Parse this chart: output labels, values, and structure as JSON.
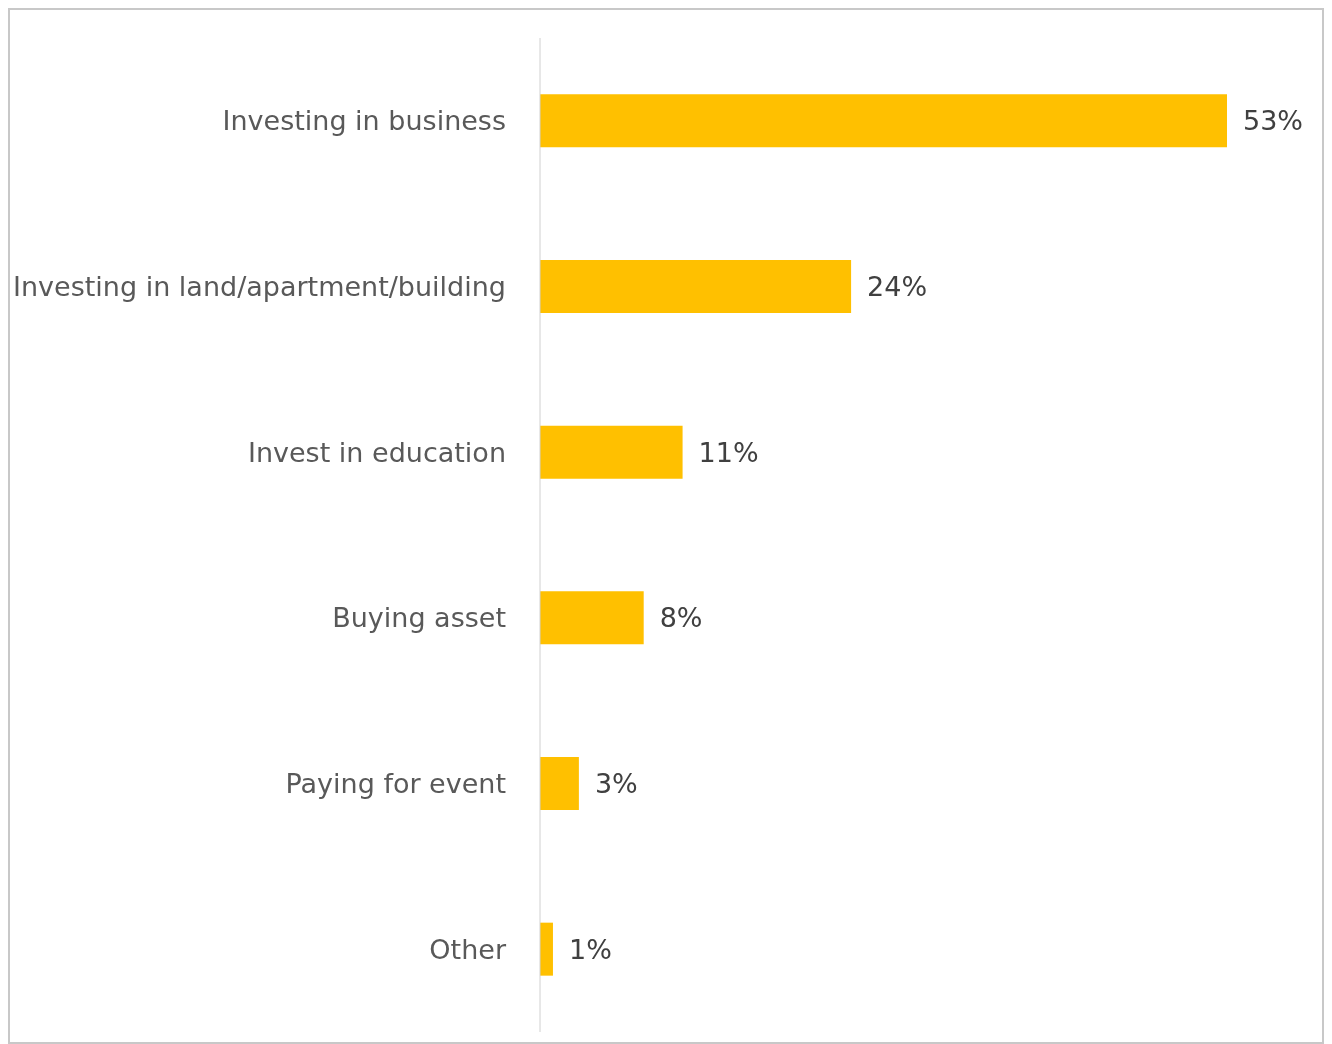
{
  "chart_data": {
    "type": "bar",
    "orientation": "horizontal",
    "categories": [
      "Investing in business",
      "Investing in land/apartment/building",
      "Invest in education",
      "Buying asset",
      "Paying for event",
      "Other"
    ],
    "values": [
      53,
      24,
      11,
      8,
      3,
      1
    ],
    "value_labels": [
      "53%",
      "24%",
      "11%",
      "8%",
      "3%",
      "1%"
    ],
    "color": "#ffc000"
  }
}
